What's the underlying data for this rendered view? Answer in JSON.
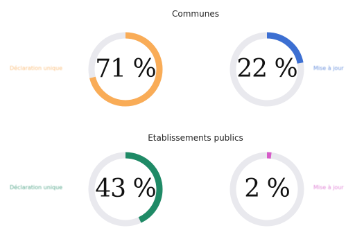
{
  "chart_data": [
    {
      "type": "pie",
      "title": "Communes",
      "charts": [
        {
          "value": 71,
          "display": "71 %",
          "label": "Déclaration unique",
          "color": "#F9AC57",
          "label_side": "left"
        },
        {
          "value": 22,
          "display": "22 %",
          "label": "Mise à jour",
          "color": "#3C6FD2",
          "label_side": "right"
        }
      ]
    },
    {
      "type": "pie",
      "title": "Etablissements publics",
      "charts": [
        {
          "value": 43,
          "display": "43 %",
          "label": "Déclaration unique",
          "color": "#1F8A66",
          "label_side": "left"
        },
        {
          "value": 2,
          "display": "2 %",
          "label": "Mise à jour",
          "color": "#D65BC8",
          "label_side": "right"
        }
      ]
    }
  ],
  "track_color": "#E9E9EE"
}
